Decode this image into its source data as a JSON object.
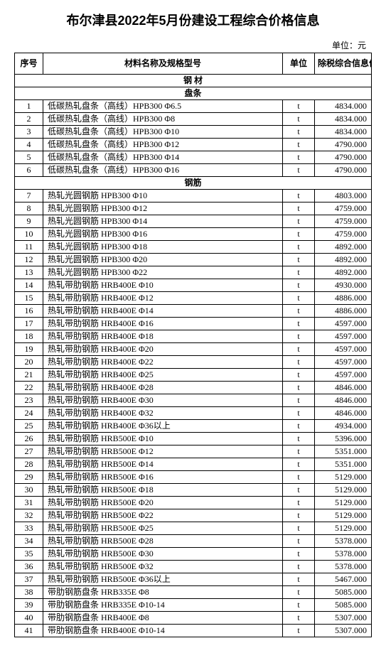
{
  "title": "布尔津县2022年5月份建设工程综合价格信息",
  "unit_label": "单位：元",
  "columns": {
    "seq": "序号",
    "name": "材料名称及规格型号",
    "unit": "单位",
    "price": "除税综合信息价"
  },
  "sections": [
    {
      "type": "section",
      "label": "钢  材"
    },
    {
      "type": "section",
      "label": "盘条"
    },
    {
      "type": "row",
      "seq": "1",
      "name": "低碳热轧盘条（高线）HPB300 Φ6.5",
      "unit": "t",
      "price": "4834.000"
    },
    {
      "type": "row",
      "seq": "2",
      "name": "低碳热轧盘条（高线）HPB300 Φ8",
      "unit": "t",
      "price": "4834.000"
    },
    {
      "type": "row",
      "seq": "3",
      "name": "低碳热轧盘条（高线）HPB300 Φ10",
      "unit": "t",
      "price": "4834.000"
    },
    {
      "type": "row",
      "seq": "4",
      "name": "低碳热轧盘条（高线）HPB300 Φ12",
      "unit": "t",
      "price": "4790.000"
    },
    {
      "type": "row",
      "seq": "5",
      "name": "低碳热轧盘条（高线）HPB300 Φ14",
      "unit": "t",
      "price": "4790.000"
    },
    {
      "type": "row",
      "seq": "6",
      "name": "低碳热轧盘条（高线）HPB300 Φ16",
      "unit": "t",
      "price": "4790.000"
    },
    {
      "type": "section",
      "label": "钢筋"
    },
    {
      "type": "row",
      "seq": "7",
      "name": "热轧光圆钢筋 HPB300 Φ10",
      "unit": "t",
      "price": "4803.000"
    },
    {
      "type": "row",
      "seq": "8",
      "name": "热轧光圆钢筋 HPB300 Φ12",
      "unit": "t",
      "price": "4759.000"
    },
    {
      "type": "row",
      "seq": "9",
      "name": "热轧光圆钢筋 HPB300 Φ14",
      "unit": "t",
      "price": "4759.000"
    },
    {
      "type": "row",
      "seq": "10",
      "name": "热轧光圆钢筋 HPB300 Φ16",
      "unit": "t",
      "price": "4759.000"
    },
    {
      "type": "row",
      "seq": "11",
      "name": "热轧光圆钢筋 HPB300 Φ18",
      "unit": "t",
      "price": "4892.000"
    },
    {
      "type": "row",
      "seq": "12",
      "name": "热轧光圆钢筋 HPB300 Φ20",
      "unit": "t",
      "price": "4892.000"
    },
    {
      "type": "row",
      "seq": "13",
      "name": "热轧光圆钢筋 HPB300 Φ22",
      "unit": "t",
      "price": "4892.000"
    },
    {
      "type": "row",
      "seq": "14",
      "name": "热轧带肋钢筋 HRB400E Φ10",
      "unit": "t",
      "price": "4930.000"
    },
    {
      "type": "row",
      "seq": "15",
      "name": "热轧带肋钢筋 HRB400E Φ12",
      "unit": "t",
      "price": "4886.000"
    },
    {
      "type": "row",
      "seq": "16",
      "name": "热轧带肋钢筋 HRB400E Φ14",
      "unit": "t",
      "price": "4886.000"
    },
    {
      "type": "row",
      "seq": "17",
      "name": "热轧带肋钢筋 HRB400E Φ16",
      "unit": "t",
      "price": "4597.000"
    },
    {
      "type": "row",
      "seq": "18",
      "name": "热轧带肋钢筋 HRB400E Φ18",
      "unit": "t",
      "price": "4597.000"
    },
    {
      "type": "row",
      "seq": "19",
      "name": "热轧带肋钢筋 HRB400E Φ20",
      "unit": "t",
      "price": "4597.000"
    },
    {
      "type": "row",
      "seq": "20",
      "name": "热轧带肋钢筋 HRB400E Φ22",
      "unit": "t",
      "price": "4597.000"
    },
    {
      "type": "row",
      "seq": "21",
      "name": "热轧带肋钢筋 HRB400E Φ25",
      "unit": "t",
      "price": "4597.000"
    },
    {
      "type": "row",
      "seq": "22",
      "name": "热轧带肋钢筋 HRB400E Φ28",
      "unit": "t",
      "price": "4846.000"
    },
    {
      "type": "row",
      "seq": "23",
      "name": "热轧带肋钢筋 HRB400E Φ30",
      "unit": "t",
      "price": "4846.000"
    },
    {
      "type": "row",
      "seq": "24",
      "name": "热轧带肋钢筋 HRB400E Φ32",
      "unit": "t",
      "price": "4846.000"
    },
    {
      "type": "row",
      "seq": "25",
      "name": "热轧带肋钢筋 HRB400E Φ36以上",
      "unit": "t",
      "price": "4934.000"
    },
    {
      "type": "row",
      "seq": "26",
      "name": "热轧带肋钢筋 HRB500E Φ10",
      "unit": "t",
      "price": "5396.000"
    },
    {
      "type": "row",
      "seq": "27",
      "name": "热轧带肋钢筋 HRB500E Φ12",
      "unit": "t",
      "price": "5351.000"
    },
    {
      "type": "row",
      "seq": "28",
      "name": "热轧带肋钢筋 HRB500E Φ14",
      "unit": "t",
      "price": "5351.000"
    },
    {
      "type": "row",
      "seq": "29",
      "name": "热轧带肋钢筋 HRB500E Φ16",
      "unit": "t",
      "price": "5129.000"
    },
    {
      "type": "row",
      "seq": "30",
      "name": "热轧带肋钢筋 HRB500E Φ18",
      "unit": "t",
      "price": "5129.000"
    },
    {
      "type": "row",
      "seq": "31",
      "name": "热轧带肋钢筋 HRB500E Φ20",
      "unit": "t",
      "price": "5129.000"
    },
    {
      "type": "row",
      "seq": "32",
      "name": "热轧带肋钢筋 HRB500E Φ22",
      "unit": "t",
      "price": "5129.000"
    },
    {
      "type": "row",
      "seq": "33",
      "name": "热轧带肋钢筋 HRB500E Φ25",
      "unit": "t",
      "price": "5129.000"
    },
    {
      "type": "row",
      "seq": "34",
      "name": "热轧带肋钢筋 HRB500E Φ28",
      "unit": "t",
      "price": "5378.000"
    },
    {
      "type": "row",
      "seq": "35",
      "name": "热轧带肋钢筋 HRB500E Φ30",
      "unit": "t",
      "price": "5378.000"
    },
    {
      "type": "row",
      "seq": "36",
      "name": "热轧带肋钢筋 HRB500E Φ32",
      "unit": "t",
      "price": "5378.000"
    },
    {
      "type": "row",
      "seq": "37",
      "name": "热轧带肋钢筋 HRB500E Φ36以上",
      "unit": "t",
      "price": "5467.000"
    },
    {
      "type": "row",
      "seq": "38",
      "name": "带肋钢筋盘条 HRB335E Φ8",
      "unit": "t",
      "price": "5085.000"
    },
    {
      "type": "row",
      "seq": "39",
      "name": "带肋钢筋盘条 HRB335E Φ10-14",
      "unit": "t",
      "price": "5085.000"
    },
    {
      "type": "row",
      "seq": "40",
      "name": "带肋钢筋盘条 HRB400E Φ8",
      "unit": "t",
      "price": "5307.000"
    },
    {
      "type": "row",
      "seq": "41",
      "name": "带肋钢筋盘条 HRB400E Φ10-14",
      "unit": "t",
      "price": "5307.000"
    }
  ]
}
